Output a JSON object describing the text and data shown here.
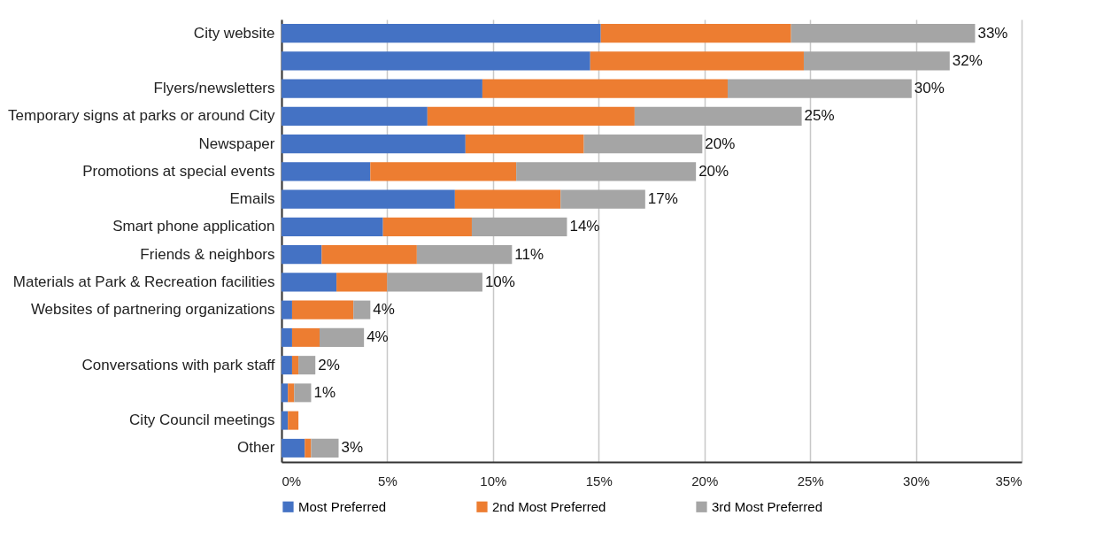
{
  "chart_data": {
    "type": "bar",
    "orientation": "horizontal",
    "stacked": true,
    "categories": [
      "City website",
      null,
      "Flyers/newsletters",
      "Temporary signs at parks or around City",
      "Newspaper",
      "Promotions at special events",
      "Emails",
      "Smart phone application",
      "Friends & neighbors",
      "Materials at Park & Recreation facilities",
      "Websites of partnering organizations",
      null,
      "Conversations with park staff",
      null,
      "City Council meetings",
      "Other"
    ],
    "series": [
      {
        "name": "Most Preferred",
        "color": "#4472c4",
        "values": [
          15.1,
          14.6,
          9.5,
          6.9,
          8.7,
          4.2,
          8.2,
          4.8,
          1.9,
          2.6,
          0.5,
          0.5,
          0.5,
          0.3,
          0.3,
          1.1
        ]
      },
      {
        "name": "2nd Most Preferred",
        "color": "#ed7d31",
        "values": [
          9.0,
          10.1,
          11.6,
          9.8,
          5.6,
          6.9,
          5.0,
          4.2,
          4.5,
          2.4,
          2.9,
          1.3,
          0.3,
          0.3,
          0.5,
          0.3
        ]
      },
      {
        "name": "3rd Most Preferred",
        "color": "#a5a5a5",
        "values": [
          8.7,
          6.9,
          8.7,
          7.9,
          5.6,
          8.5,
          4.0,
          4.5,
          4.5,
          4.5,
          0.8,
          2.1,
          0.8,
          0.8,
          0.0,
          1.3
        ]
      }
    ],
    "totals": [
      "33%",
      "32%",
      "30%",
      "25%",
      "20%",
      "20%",
      "17%",
      "14%",
      "11%",
      "10%",
      "4%",
      "4%",
      "2%",
      "1%",
      null,
      "3%"
    ],
    "xlim": [
      0,
      35
    ],
    "xticks": [
      {
        "value": 0,
        "label": "0%"
      },
      {
        "value": 5,
        "label": "5%"
      },
      {
        "value": 10,
        "label": "10%"
      },
      {
        "value": 15,
        "label": "15%"
      },
      {
        "value": 20,
        "label": "20%"
      },
      {
        "value": 25,
        "label": "25%"
      },
      {
        "value": 30,
        "label": "30%"
      },
      {
        "value": 35,
        "label": "35%"
      }
    ],
    "grid": "x",
    "legend": "bottom"
  }
}
